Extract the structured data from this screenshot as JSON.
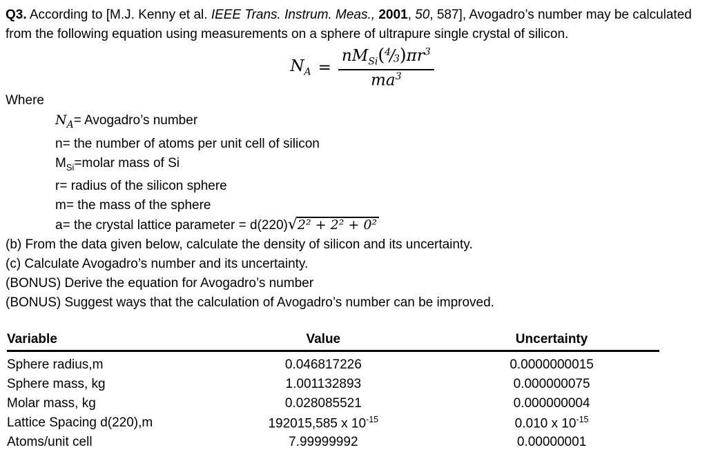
{
  "document": {
    "intro": {
      "segments": [
        {
          "text": "Q3.",
          "style": "bold"
        },
        {
          "text": " According to [M.J. Kenny et al. ",
          "style": "regular"
        },
        {
          "text": "IEEE Trans. Instrum. Meas.,",
          "style": "italic"
        },
        {
          "text": " ",
          "style": "regular"
        },
        {
          "text": "2001",
          "style": "bold"
        },
        {
          "text": ", ",
          "style": "regular"
        },
        {
          "text": "50",
          "style": "italic"
        },
        {
          "text": ", 587], Avogadro’s number may be calculated from the following equation using measurements on a sphere of ultrapure single crystal of silicon.",
          "style": "regular"
        }
      ]
    },
    "equation": {
      "lhs_base": "N",
      "lhs_sub": "A",
      "equals": "=",
      "numerator": {
        "term1": "nM",
        "term1_sub": "Si",
        "open_paren": "(",
        "frac_num": "4",
        "frac_slash": "/",
        "frac_den": "3",
        "close_paren": ")",
        "term2": "πr",
        "term2_sup": "3"
      },
      "denominator": {
        "base": "ma",
        "sup": "3"
      }
    },
    "where_label": "Where",
    "definitions": {
      "na": {
        "symbol": "N",
        "symbol_sub": "A",
        "text": "= Avogadro’s number"
      },
      "n": {
        "text": "n= the number of atoms per unit cell of silicon"
      },
      "msi": {
        "symbol": "M",
        "symbol_sub": "Si",
        "text": "=molar mass of Si"
      },
      "r": {
        "text": "r= radius of the silicon sphere"
      },
      "m": {
        "text": "m= the mass of the sphere"
      },
      "a": {
        "lead": "a= the crystal lattice parameter = d(220)",
        "radical_sign": "√",
        "radicand": "2² + 2² + 0²"
      }
    },
    "tasks": [
      "(b) From the data given below, calculate the density of silicon and its uncertainty.",
      "(c) Calculate Avogadro’s number and its uncertainty.",
      "(BONUS) Derive the equation for Avogadro’s number",
      "(BONUS) Suggest ways that the calculation of Avogadro’s number can be improved."
    ],
    "table": {
      "headers": {
        "variable": "Variable",
        "value": "Value",
        "uncertainty": "Uncertainty"
      },
      "rows": [
        {
          "variable": "Sphere radius,m",
          "value": "0.046817226",
          "uncertainty": "0.0000000015"
        },
        {
          "variable": "Sphere mass, kg",
          "value": "1.001132893",
          "uncertainty": "0.000000075"
        },
        {
          "variable": "Molar mass, kg",
          "value": "0.028085521",
          "uncertainty": "0.000000004"
        },
        {
          "variable": "Lattice Spacing d(220),m",
          "value_base": "192015,585 x 10",
          "value_sup": "-15",
          "uncertainty_base": "0.010 x 10",
          "uncertainty_sup": "-15"
        },
        {
          "variable": "Atoms/unit cell",
          "value": "7.99999992",
          "uncertainty": "0.00000001"
        }
      ]
    }
  },
  "colors": {
    "text": "#000000",
    "background": "#ffffff",
    "rule": "#000000"
  }
}
